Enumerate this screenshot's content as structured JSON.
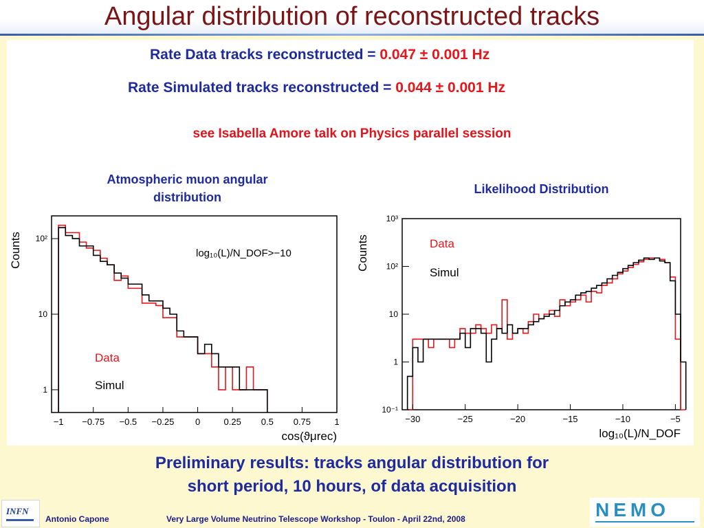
{
  "title": "Angular distribution of reconstructed tracks",
  "rates": {
    "data_label": "Rate Data tracks reconstructed = ",
    "data_value": "0.047 ± 0.001 Hz",
    "sim_label": "Rate Simulated tracks reconstructed = ",
    "sim_value": "0.044 ± 0.001 Hz"
  },
  "note": "see Isabella Amore talk on Physics parallel session",
  "left_panel": {
    "heading_line1": "Atmospheric muon angular",
    "heading_line2": "distribution"
  },
  "right_panel": {
    "heading": "Likelihood Distribution"
  },
  "caption": {
    "line1": "Preliminary results: tracks angular distribution for",
    "line2": "short period, 10 hours,  of data acquisition"
  },
  "footer": {
    "author": "Antonio Capone",
    "event": "Very Large Volume Neutrino Telescope Workshop - Toulon - April 22nd, 2008",
    "left_logo_text": "INFN",
    "right_logo_text": "NEMO"
  },
  "colors": {
    "data": "#e8151b",
    "simul": "#000000",
    "title": "#7b1416",
    "blue": "#1d2aa0"
  },
  "chart_data": [
    {
      "type": "step",
      "ylabel": "Counts",
      "xlabel": "cos(ϑμrec)",
      "x_ticks": [
        "−1",
        "−0.75",
        "−0.5",
        "−0.25",
        "0",
        "0.25",
        "0.5",
        "0.75",
        "1"
      ],
      "y_ticks": [
        "1",
        "10",
        "10²"
      ],
      "cut_label": "log₁₀(L)/N_DOF>−10",
      "log_y": true,
      "xlim": [
        -1.05,
        1.0
      ],
      "ylim": [
        0.5,
        200
      ],
      "bin_width": 0.05,
      "x_start": -1.0,
      "series": [
        {
          "name": "Data",
          "color": "#e8151b",
          "values": [
            150,
            120,
            120,
            90,
            75,
            70,
            55,
            45,
            28,
            32,
            22,
            22,
            14,
            14,
            13,
            9,
            9,
            5,
            5,
            5,
            3,
            3,
            2,
            1,
            2,
            1,
            1,
            2,
            1,
            1
          ]
        },
        {
          "name": "Simul",
          "color": "#000000",
          "values": [
            140,
            110,
            100,
            80,
            80,
            60,
            50,
            45,
            35,
            30,
            25,
            25,
            18,
            15,
            15,
            12,
            10,
            6,
            5,
            5,
            3,
            4,
            3,
            2,
            2,
            2,
            1,
            1,
            1,
            1
          ]
        }
      ]
    },
    {
      "type": "step",
      "title": "Likelihood Distribution",
      "ylabel": "Counts",
      "xlabel": "log₁₀(L)/N_DOF",
      "x_ticks": [
        "−30",
        "−25",
        "−20",
        "−15",
        "−10",
        "−5"
      ],
      "y_ticks": [
        "10⁻¹",
        "1",
        "10",
        "10²",
        "10³"
      ],
      "log_y": true,
      "xlim": [
        -31,
        -4.5
      ],
      "ylim": [
        0.1,
        1000
      ],
      "bin_width": 0.5,
      "x_start": -30.5,
      "series": [
        {
          "name": "Data",
          "color": "#e8151b",
          "values": [
            0.1,
            3,
            3,
            3,
            2,
            3,
            3,
            3,
            2,
            3,
            5,
            4,
            4,
            6,
            5,
            4,
            6,
            5,
            20,
            3,
            4,
            5,
            4,
            7,
            10,
            8,
            10,
            12,
            9,
            20,
            15,
            18,
            20,
            25,
            18,
            30,
            28,
            40,
            45,
            55,
            70,
            80,
            95,
            110,
            125,
            140,
            150,
            150,
            140,
            120,
            60,
            3,
            0.1
          ]
        },
        {
          "name": "Simul",
          "color": "#000000",
          "values": [
            0.5,
            2,
            1,
            3,
            3,
            3,
            3,
            3,
            3,
            3,
            4,
            2,
            5,
            5,
            4,
            1,
            3,
            5,
            4,
            6,
            4,
            5,
            5,
            6,
            7,
            8,
            9,
            10,
            12,
            15,
            18,
            20,
            25,
            28,
            30,
            35,
            40,
            45,
            55,
            65,
            75,
            90,
            105,
            120,
            135,
            150,
            140,
            150,
            130,
            120,
            50,
            10,
            1
          ]
        }
      ]
    }
  ]
}
